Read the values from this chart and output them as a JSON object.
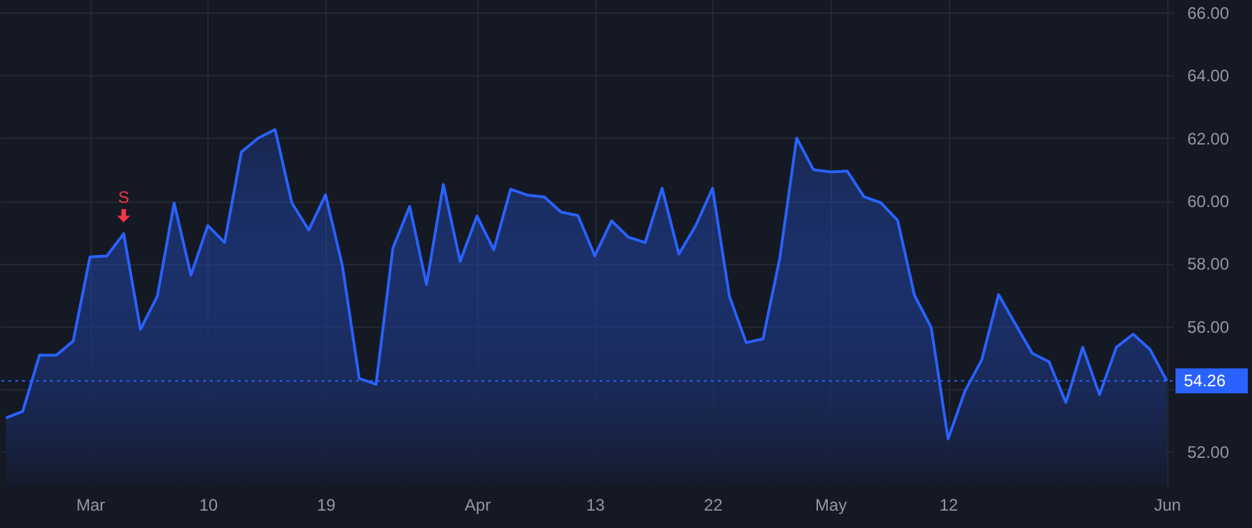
{
  "chart_data": {
    "type": "area",
    "categories": [
      null,
      null,
      null,
      null,
      null,
      "Mar",
      null,
      null,
      null,
      null,
      null,
      null,
      "10",
      null,
      null,
      null,
      null,
      null,
      null,
      "19",
      null,
      null,
      null,
      null,
      null,
      null,
      null,
      null,
      "Apr",
      null,
      null,
      null,
      null,
      null,
      null,
      "13",
      null,
      null,
      null,
      null,
      null,
      null,
      "22",
      null,
      null,
      null,
      null,
      null,
      null,
      "May",
      null,
      null,
      null,
      null,
      null,
      null,
      "12",
      null,
      null,
      null,
      null,
      null,
      null,
      null,
      null,
      null,
      null,
      null,
      null,
      "Jun"
    ],
    "series": [
      {
        "color": "#2962ff",
        "values": [
          53.08,
          53.29,
          55.08,
          55.08,
          55.53,
          58.21,
          58.24,
          58.95,
          55.9,
          56.96,
          59.93,
          57.63,
          59.21,
          58.67,
          61.56,
          62.0,
          62.27,
          59.93,
          59.07,
          60.19,
          57.93,
          54.34,
          54.15,
          58.49,
          59.82,
          57.33,
          60.52,
          58.07,
          59.51,
          58.44,
          60.37,
          60.18,
          60.12,
          59.64,
          59.53,
          58.25,
          59.36,
          58.84,
          58.67,
          60.4,
          58.3,
          59.21,
          60.4,
          56.96,
          55.48,
          55.6,
          58.18,
          62.0,
          60.99,
          60.92,
          60.95,
          60.13,
          59.94,
          59.38,
          56.99,
          55.96,
          52.41,
          53.93,
          54.93,
          57.01,
          56.07,
          55.14,
          54.87,
          53.57,
          55.33,
          53.82,
          55.33,
          55.75,
          55.26,
          54.26
        ]
      }
    ],
    "ylim": [
      50.9,
      66.4
    ],
    "yticks": [
      {
        "value": 52,
        "label": "52.00"
      },
      {
        "value": 54,
        "label": null
      },
      {
        "value": 56,
        "label": "56.00"
      },
      {
        "value": 58,
        "label": "58.00"
      },
      {
        "value": 60,
        "label": "60.00"
      },
      {
        "value": 62,
        "label": "62.00"
      },
      {
        "value": 64,
        "label": "64.00"
      },
      {
        "value": 66,
        "label": "66.00"
      }
    ],
    "grid": true,
    "ref_lines": [
      {
        "axis": "y",
        "value": 54.26,
        "label": "54.26",
        "color": "#2962ff",
        "line_style": "dotted"
      }
    ],
    "annotations": [
      {
        "text": "S",
        "y": 58.95
      }
    ]
  }
}
